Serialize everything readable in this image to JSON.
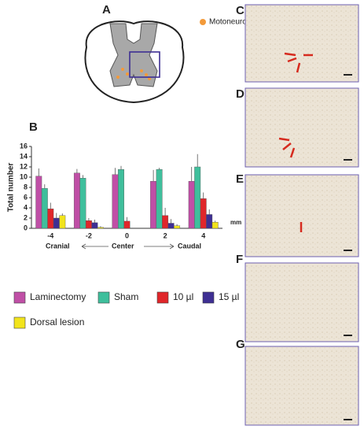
{
  "figure": {
    "panel_labels": [
      "A",
      "B",
      "C",
      "D",
      "E",
      "F",
      "G"
    ],
    "marker_legend": "Motoneuron"
  },
  "chart_data": {
    "type": "bar",
    "ylabel": "Total number",
    "x_unit": "mm",
    "direction_labels": [
      "Cranial",
      "Center",
      "Caudal"
    ],
    "categories": [
      "-4",
      "-2",
      "0",
      "2",
      "4"
    ],
    "ylim": [
      0,
      16
    ],
    "yticks": [
      0,
      2,
      4,
      6,
      8,
      10,
      12,
      14,
      16
    ],
    "series": [
      {
        "name": "Laminectomy",
        "color": "#c04fa6",
        "values": [
          10.2,
          10.8,
          10.5,
          9.2,
          9.2
        ],
        "errors": [
          1.5,
          0.8,
          1.3,
          2.2,
          2.8
        ]
      },
      {
        "name": "Sham",
        "color": "#3fbf9c",
        "values": [
          7.8,
          9.8,
          11.5,
          11.5,
          12
        ],
        "errors": [
          0.8,
          0.6,
          0.7,
          0.3,
          2.5
        ]
      },
      {
        "name": "10 µl",
        "color": "#e0262a",
        "values": [
          3.8,
          1.5,
          1.4,
          2.5,
          5.8
        ],
        "errors": [
          1.2,
          0.5,
          0.8,
          1.5,
          1.2
        ]
      },
      {
        "name": "15 µl",
        "color": "#3e2f93",
        "values": [
          2,
          1.1,
          0,
          1,
          2.7
        ],
        "errors": [
          1.0,
          0.6,
          0,
          0.8,
          1.0
        ]
      },
      {
        "name": "Dorsal lesion",
        "color": "#f2e41c",
        "values": [
          2.5,
          0.2,
          0,
          0.5,
          1.2
        ],
        "errors": [
          0.4,
          0.2,
          0,
          0.3,
          0.3
        ]
      }
    ]
  }
}
